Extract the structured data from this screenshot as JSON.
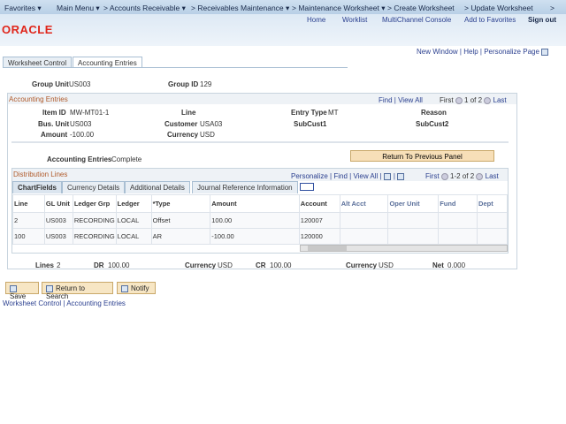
{
  "nav": {
    "items": [
      "Favorites ▾",
      "Main Menu ▾",
      "> Accounts Receivable ▾",
      "> Receivables Maintenance ▾",
      "> Maintenance Worksheet ▾",
      "> Create Worksheet",
      "> Update Worksheet",
      ">"
    ]
  },
  "header": {
    "links": [
      "Home",
      "Worklist",
      "MultiChannel Console",
      "Add to Favorites"
    ],
    "signout": "Sign out",
    "logo": "ORACLE"
  },
  "pagelinks": {
    "new_window": "New Window",
    "help": "Help",
    "personalize": "Personalize Page"
  },
  "tabs": [
    "Worksheet Control",
    "Accounting Entries"
  ],
  "group": {
    "unit_label": "Group Unit",
    "unit": "US003",
    "id_label": "Group ID",
    "id": "129"
  },
  "ae": {
    "title": "Accounting Entries",
    "find": "Find",
    "viewall": "View All",
    "first": "First",
    "pos": "1 of 2",
    "last": "Last",
    "item_label": "Item ID",
    "item": "MW-MT01-1",
    "line_label": "Line",
    "entry_label": "Entry Type",
    "entry": "MT",
    "reason_label": "Reason",
    "bu_label": "Bus. Unit",
    "bu": "US003",
    "cust_label": "Customer",
    "cust": "USA03",
    "sub1": "SubCust1",
    "sub2": "SubCust2",
    "amt_label": "Amount",
    "amt": "-100.00",
    "cur_label": "Currency",
    "cur": "USD",
    "status_label": "Accounting Entries",
    "status": "Complete",
    "return_btn": "Return To Previous Panel"
  },
  "dl": {
    "title": "Distribution Lines",
    "personalize": "Personalize",
    "find": "Find",
    "viewall": "View All",
    "first": "First",
    "pos": "1-2 of 2",
    "last": "Last",
    "tabs": [
      "ChartFields",
      "Currency Details",
      "Additional Details",
      "Journal Reference Information"
    ],
    "columns": [
      "Line",
      "GL Unit",
      "Ledger Grp",
      "Ledger",
      "*Type",
      "Amount",
      "Account",
      "Alt Acct",
      "Oper Unit",
      "Fund",
      "Dept"
    ],
    "rows": [
      [
        "2",
        "US003",
        "RECORDING",
        "LOCAL",
        "Offset",
        "100.00",
        "120007",
        "",
        "",
        "",
        ""
      ],
      [
        "100",
        "US003",
        "RECORDING",
        "LOCAL",
        "AR",
        "-100.00",
        "120000",
        "",
        "",
        "",
        ""
      ]
    ]
  },
  "totals": {
    "lines_label": "Lines",
    "lines": "2",
    "dr_label": "DR",
    "dr": "100.00",
    "cur1_label": "Currency",
    "cur1": "USD",
    "cr_label": "CR",
    "cr": "100.00",
    "cur2_label": "Currency",
    "cur2": "USD",
    "net_label": "Net",
    "net": "0.000"
  },
  "buttons": {
    "save": "Save",
    "return": "Return to Search",
    "notify": "Notify"
  },
  "footer": {
    "link1": "Worksheet Control",
    "sep": "|",
    "link2": "Accounting Entries"
  }
}
